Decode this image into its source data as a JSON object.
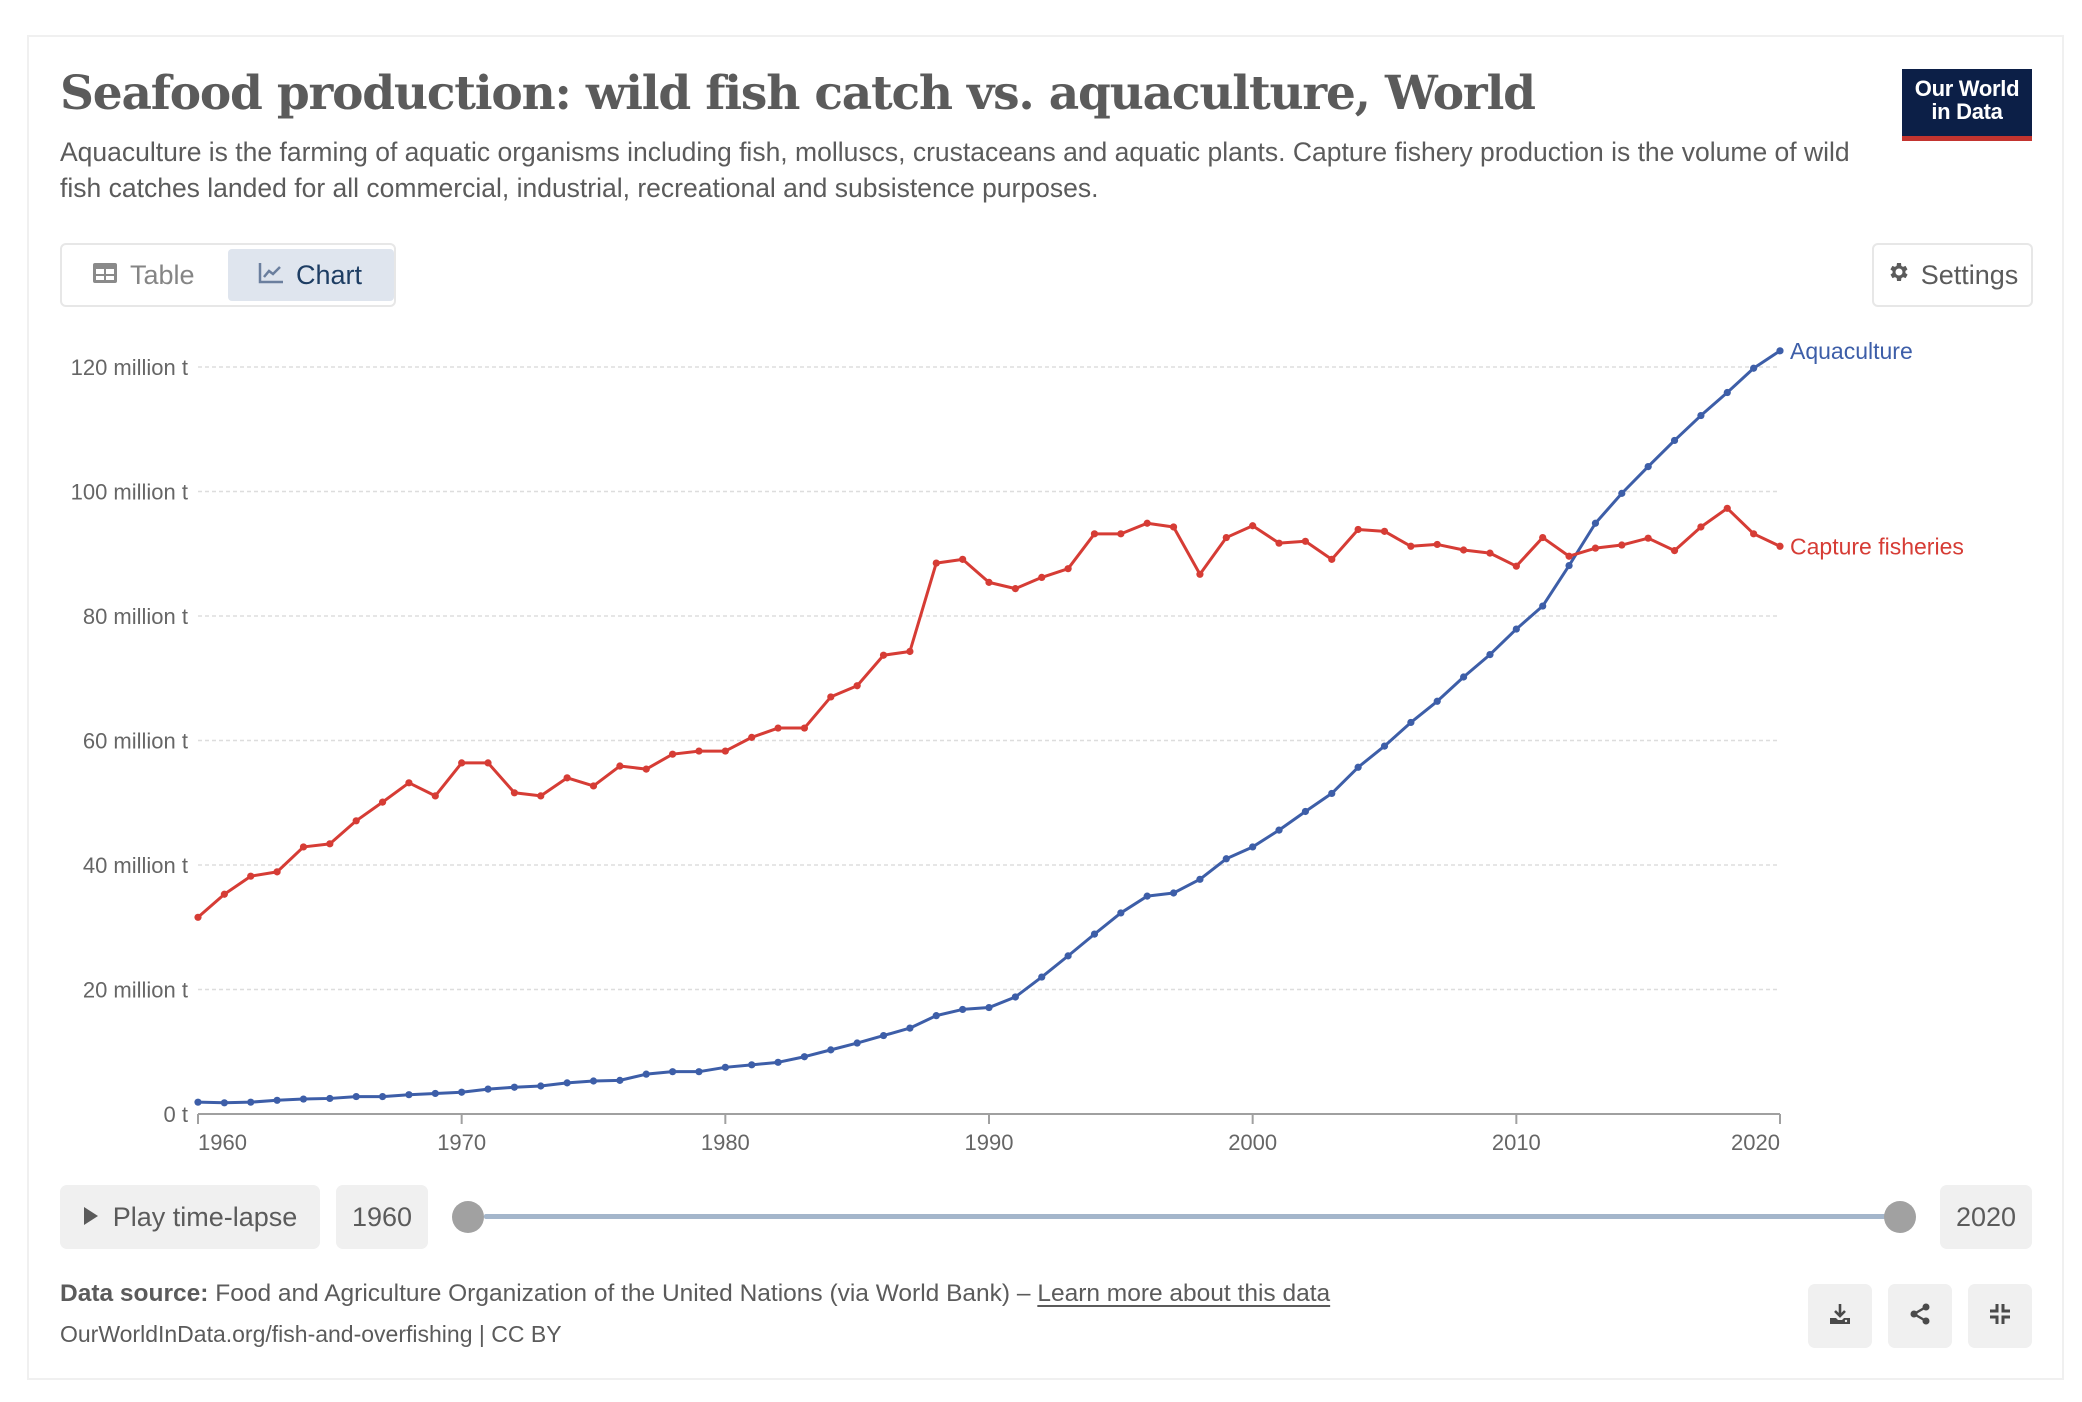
{
  "header": {
    "title": "Seafood production: wild fish catch vs. aquaculture, World",
    "subtitle": "Aquaculture is the farming of aquatic organisms including fish, molluscs, crustaceans and aquatic plants. Capture fishery production is the volume of wild fish catches landed for all commercial, industrial, recreational and subsistence purposes.",
    "logo_line1": "Our World",
    "logo_line2": "in Data"
  },
  "tabs": [
    {
      "label": "Table",
      "icon": "table-icon",
      "active": false
    },
    {
      "label": "Chart",
      "icon": "line-chart-icon",
      "active": true
    }
  ],
  "settings": {
    "label": "Settings",
    "icon": "gear-icon"
  },
  "timeline": {
    "play_label": "Play time-lapse",
    "start_year": "1960",
    "end_year": "2020",
    "start_fraction": 0,
    "end_fraction": 1
  },
  "footer": {
    "source_label": "Data source:",
    "source_text": "Food and Agriculture Organization of the United Nations (via World Bank) – ",
    "learn_more": "Learn more about this data",
    "url_line": "OurWorldInData.org/fish-and-overfishing | CC BY",
    "buttons": [
      "download-icon",
      "share-icon",
      "exit-fullscreen-icon"
    ]
  },
  "colors": {
    "aquaculture": "#3d5ea8",
    "capture": "#d63c35",
    "grid": "#dddddd",
    "axis": "#a0a0a0",
    "logo_bg": "#0c1f47",
    "logo_accent": "#c3342f"
  },
  "chart_data": {
    "type": "line",
    "title": "Seafood production: wild fish catch vs. aquaculture, World",
    "xlabel": "",
    "ylabel": "",
    "xlim": [
      1960,
      2020
    ],
    "ylim": [
      0,
      120
    ],
    "y_unit": "million t",
    "y_ticks": [
      0,
      20,
      40,
      60,
      80,
      100,
      120
    ],
    "y_tick_labels": [
      "0 t",
      "20 million t",
      "40 million t",
      "60 million t",
      "80 million t",
      "100 million t",
      "120 million t"
    ],
    "x_ticks": [
      1960,
      1970,
      1980,
      1990,
      2000,
      2010,
      2020
    ],
    "x_tick_labels": [
      "1960",
      "1970",
      "1980",
      "1990",
      "2000",
      "2010",
      "2020"
    ],
    "grid": true,
    "legend": "end-of-line labels, right",
    "x": [
      1960,
      1961,
      1962,
      1963,
      1964,
      1965,
      1966,
      1967,
      1968,
      1969,
      1970,
      1971,
      1972,
      1973,
      1974,
      1975,
      1976,
      1977,
      1978,
      1979,
      1980,
      1981,
      1982,
      1983,
      1984,
      1985,
      1986,
      1987,
      1988,
      1989,
      1990,
      1991,
      1992,
      1993,
      1994,
      1995,
      1996,
      1997,
      1998,
      1999,
      2000,
      2001,
      2002,
      2003,
      2004,
      2005,
      2006,
      2007,
      2008,
      2009,
      2010,
      2011,
      2012,
      2013,
      2014,
      2015,
      2016,
      2017,
      2018,
      2019,
      2020
    ],
    "series": [
      {
        "name": "Aquaculture",
        "color": "#3d5ea8",
        "values": [
          1.9,
          1.8,
          1.9,
          2.2,
          2.4,
          2.5,
          2.8,
          2.8,
          3.1,
          3.3,
          3.5,
          4.0,
          4.3,
          4.5,
          5.0,
          5.3,
          5.4,
          6.4,
          6.8,
          6.8,
          7.5,
          7.9,
          8.3,
          9.2,
          10.3,
          11.4,
          12.6,
          13.8,
          15.8,
          16.8,
          17.1,
          18.8,
          22.0,
          25.4,
          28.9,
          32.3,
          35.0,
          35.5,
          37.7,
          41.0,
          42.9,
          45.6,
          48.6,
          51.5,
          55.7,
          59.1,
          62.9,
          66.3,
          70.2,
          73.8,
          77.9,
          81.6,
          88.1,
          94.9,
          99.7,
          104.0,
          108.2,
          112.2,
          115.9,
          119.8,
          122.6
        ]
      },
      {
        "name": "Capture fisheries",
        "color": "#d63c35",
        "values": [
          31.6,
          35.3,
          38.2,
          38.9,
          42.9,
          43.4,
          47.1,
          50.1,
          53.2,
          51.1,
          56.4,
          56.4,
          51.6,
          51.1,
          54.0,
          52.7,
          55.9,
          55.4,
          57.8,
          58.3,
          58.3,
          60.5,
          62.0,
          62.0,
          67.0,
          68.8,
          73.7,
          74.3,
          88.5,
          89.1,
          85.4,
          84.4,
          86.2,
          87.6,
          93.2,
          93.2,
          94.9,
          94.3,
          86.7,
          92.6,
          94.5,
          91.7,
          92.0,
          89.1,
          93.9,
          93.6,
          91.2,
          91.5,
          90.6,
          90.1,
          88.0,
          92.6,
          89.6,
          90.9,
          91.4,
          92.5,
          90.5,
          94.3,
          97.3,
          93.2,
          91.2
        ]
      }
    ]
  }
}
